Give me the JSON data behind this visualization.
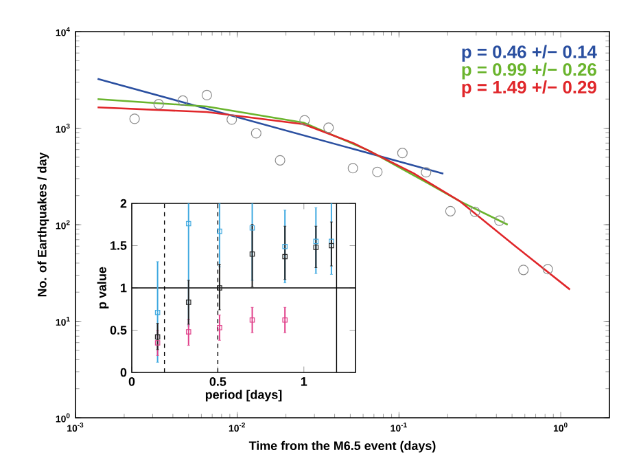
{
  "chart_data": [
    {
      "type": "line",
      "xlabel": "Time from the M6.5 event (days)",
      "ylabel": "No. of Earthquakes / day",
      "log": "xy",
      "xlim": [
        0.001,
        2
      ],
      "ylim": [
        1,
        10000
      ],
      "xticks": [
        {
          "value": 0.001,
          "label": "10$^{-3}$"
        },
        {
          "value": 0.01,
          "label": "10$^{-2}$"
        },
        {
          "value": 0.1,
          "label": "10$^{-1}$"
        },
        {
          "value": 1,
          "label": "10$^{0}$"
        }
      ],
      "yticks": [
        {
          "value": 1,
          "label": "10$^{0}$"
        },
        {
          "value": 10,
          "label": "10$^{1}$"
        },
        {
          "value": 100,
          "label": "10$^{2}$"
        },
        {
          "value": 1000,
          "label": "10$^{3}$"
        },
        {
          "value": 10000,
          "label": "10$^{4}$"
        }
      ],
      "legend": "top right",
      "grid": false,
      "series": [
        {
          "type": "scatter",
          "marker": "circle",
          "color": "#8c8c8c",
          "x": [
            0.00232,
            0.00327,
            0.00461,
            0.00649,
            0.00925,
            0.0131,
            0.0184,
            0.0261,
            0.0367,
            0.0519,
            0.0735,
            0.105,
            0.147,
            0.208,
            0.295,
            0.418,
            0.588,
            0.832
          ],
          "values": [
            1250,
            1770,
            1930,
            2200,
            1230,
            885,
            464,
            1206,
            1010,
            385,
            352,
            553,
            349,
            138,
            136,
            110,
            34,
            34.6
          ]
        },
        {
          "name": "p = 0.46 +/− 0.14",
          "color": "#2a4fa0",
          "x": [
            0.00137,
            0.188
          ],
          "values": [
            3240,
            338
          ]
        },
        {
          "name": "p = 0.99 +/− 0.26",
          "color": "#6ab42d",
          "x": [
            0.00137,
            0.00649,
            0.0257,
            0.0645,
            0.151,
            0.239,
            0.47
          ],
          "values": [
            2000,
            1675,
            1140,
            590,
            269,
            174,
            100
          ]
        },
        {
          "name": "p = 1.49 +/− 0.29",
          "color": "#e0262a",
          "x": [
            0.00137,
            0.00649,
            0.0257,
            0.0527,
            0.123,
            0.239,
            0.53,
            1.14
          ],
          "values": [
            1640,
            1470,
            1100,
            696,
            341,
            174,
            59,
            21.3
          ]
        }
      ]
    },
    {
      "type": "scatter",
      "xlabel": "period [days]",
      "ylabel": "p value",
      "xlim": [
        0,
        1.3
      ],
      "ylim": [
        0,
        2
      ],
      "xticks": [
        0,
        0.5,
        1
      ],
      "yticks": [
        0,
        0.5,
        1,
        1.5,
        2
      ],
      "grid": false,
      "marker": "square",
      "ref_lines": [
        {
          "axis": "y",
          "value": 1,
          "line_style": "solid"
        },
        {
          "axis": "x",
          "value": 1.19,
          "line_style": "solid"
        },
        {
          "axis": "x",
          "value": 0.19,
          "line_style": "dashed"
        },
        {
          "axis": "x",
          "value": 0.5,
          "line_style": "dashed"
        }
      ],
      "series": [
        {
          "color": "#3fa9e0",
          "x": [
            0.15,
            0.33,
            0.51,
            0.7,
            0.89,
            1.07,
            1.16
          ],
          "values": [
            0.71,
            1.76,
            1.67,
            1.71,
            1.49,
            1.55,
            1.55
          ],
          "errors": [
            [
              0.12,
              1.31
            ],
            [
              0.55,
              2
            ],
            [
              1.25,
              2
            ],
            [
              1.09,
              2
            ],
            [
              1.06,
              1.92
            ],
            [
              1.17,
              1.95
            ],
            [
              1.16,
              2
            ]
          ]
        },
        {
          "color": "#e0408a",
          "x": [
            0.15,
            0.33,
            0.51,
            0.7,
            0.89
          ],
          "values": [
            0.35,
            0.48,
            0.53,
            0.62,
            0.62
          ],
          "errors": [
            [
              0.2,
              0.5
            ],
            [
              0.32,
              0.63
            ],
            [
              0.38,
              0.68
            ],
            [
              0.47,
              0.77
            ],
            [
              0.47,
              0.77
            ]
          ]
        },
        {
          "color": "#222222",
          "x": [
            0.15,
            0.33,
            0.51,
            0.7,
            0.89,
            1.07,
            1.16
          ],
          "values": [
            0.42,
            0.83,
            1.0,
            1.4,
            1.37,
            1.48,
            1.5
          ],
          "errors": [
            [
              0.27,
              0.58
            ],
            [
              0.57,
              1.09
            ],
            [
              0.74,
              1.28
            ],
            [
              1.01,
              1.75
            ],
            [
              1.1,
              1.73
            ],
            [
              1.24,
              1.73
            ],
            [
              1.26,
              1.78
            ]
          ]
        }
      ]
    }
  ]
}
